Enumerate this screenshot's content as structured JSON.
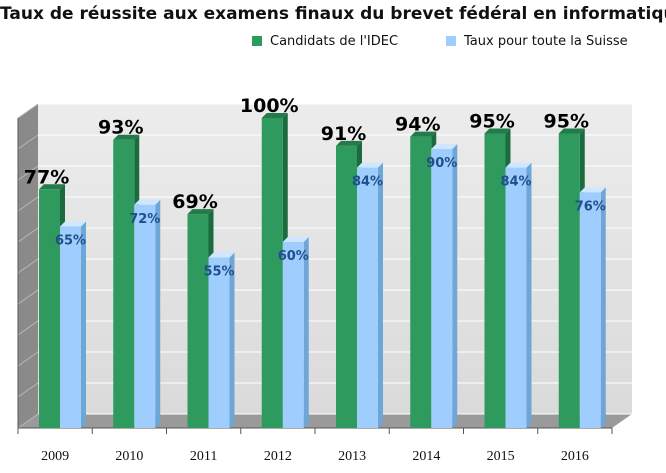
{
  "chart_data": {
    "type": "bar",
    "title": "Taux de réussite aux examens finaux du brevet fédéral en informatique",
    "categories": [
      "2009",
      "2010",
      "2011",
      "2012",
      "2013",
      "2014",
      "2015",
      "2016"
    ],
    "series": [
      {
        "name": "Candidats de l'IDEC",
        "values": [
          77,
          93,
          69,
          100,
          91,
          94,
          95,
          95
        ],
        "labels": [
          "77%",
          "93%",
          "69%",
          "100%",
          "91%",
          "94%",
          "95%",
          "95%"
        ],
        "color": "#2e9a5e"
      },
      {
        "name": "Taux pour toute la Suisse",
        "values": [
          65,
          72,
          55,
          60,
          84,
          90,
          84,
          76
        ],
        "labels": [
          "65%",
          "72%",
          "55%",
          "60%",
          "84%",
          "90%",
          "84%",
          "76%"
        ],
        "color": "#9fcdfd"
      }
    ],
    "ylim": [
      0,
      100
    ],
    "grid": true,
    "legend_position": "top",
    "three_d": true
  }
}
